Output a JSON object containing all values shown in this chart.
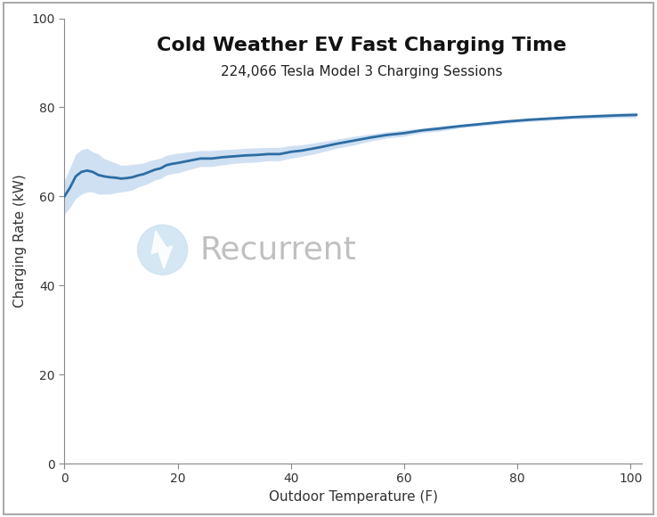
{
  "title": "Cold Weather EV Fast Charging Time",
  "subtitle": "224,066 Tesla Model 3 Charging Sessions",
  "xlabel": "Outdoor Temperature (F)",
  "ylabel": "Charging Rate (kW)",
  "xlim": [
    0,
    102
  ],
  "ylim": [
    0,
    100
  ],
  "xticks": [
    0,
    20,
    40,
    60,
    80,
    100
  ],
  "yticks": [
    0,
    20,
    40,
    60,
    80,
    100
  ],
  "line_color": "#2c6da3",
  "band_color": "#a8c8e8",
  "background_color": "#ffffff",
  "border_color": "#aaaaaa",
  "x": [
    0,
    1,
    2,
    3,
    4,
    5,
    6,
    7,
    8,
    9,
    10,
    11,
    12,
    13,
    14,
    15,
    16,
    17,
    18,
    19,
    20,
    22,
    24,
    26,
    28,
    30,
    32,
    34,
    36,
    38,
    40,
    42,
    45,
    48,
    51,
    54,
    57,
    60,
    63,
    66,
    70,
    74,
    78,
    82,
    86,
    90,
    94,
    98,
    101
  ],
  "y_mean": [
    60.0,
    62.0,
    64.5,
    65.5,
    65.8,
    65.5,
    64.8,
    64.5,
    64.3,
    64.2,
    64.0,
    64.1,
    64.3,
    64.7,
    65.0,
    65.5,
    66.0,
    66.3,
    67.0,
    67.3,
    67.5,
    68.0,
    68.5,
    68.5,
    68.8,
    69.0,
    69.2,
    69.3,
    69.5,
    69.5,
    70.0,
    70.3,
    71.0,
    71.8,
    72.5,
    73.2,
    73.8,
    74.2,
    74.8,
    75.2,
    75.8,
    76.3,
    76.8,
    77.2,
    77.5,
    77.8,
    78.0,
    78.2,
    78.3
  ],
  "y_upper": [
    63.5,
    66.5,
    69.5,
    70.5,
    70.8,
    70.0,
    69.5,
    68.5,
    68.0,
    67.5,
    67.0,
    67.0,
    67.2,
    67.3,
    67.5,
    68.0,
    68.3,
    68.6,
    69.2,
    69.5,
    69.7,
    70.0,
    70.3,
    70.3,
    70.5,
    70.6,
    70.8,
    70.9,
    71.0,
    71.0,
    71.4,
    71.6,
    72.2,
    72.8,
    73.5,
    74.0,
    74.5,
    74.9,
    75.3,
    75.8,
    76.2,
    76.7,
    77.2,
    77.6,
    77.9,
    78.2,
    78.5,
    78.7,
    78.9
  ],
  "y_lower": [
    56.0,
    57.5,
    59.5,
    60.5,
    61.0,
    61.0,
    60.5,
    60.5,
    60.5,
    60.8,
    61.0,
    61.2,
    61.4,
    62.1,
    62.5,
    63.0,
    63.7,
    64.0,
    64.8,
    65.1,
    65.3,
    66.0,
    66.7,
    66.7,
    67.1,
    67.4,
    67.6,
    67.7,
    68.0,
    68.0,
    68.6,
    69.0,
    69.8,
    70.8,
    71.5,
    72.4,
    73.1,
    73.5,
    74.3,
    74.6,
    75.4,
    75.9,
    76.4,
    76.8,
    77.1,
    77.4,
    77.5,
    77.7,
    77.7
  ],
  "watermark_text": "Recurrent",
  "watermark_color": "#c0c0c0",
  "watermark_icon_color": "#c8dff0",
  "title_fontsize": 16,
  "subtitle_fontsize": 11,
  "axis_label_fontsize": 11,
  "tick_fontsize": 10,
  "watermark_x_data": 45,
  "watermark_y_data": 50,
  "icon_x_data": 15,
  "icon_y_data": 50
}
